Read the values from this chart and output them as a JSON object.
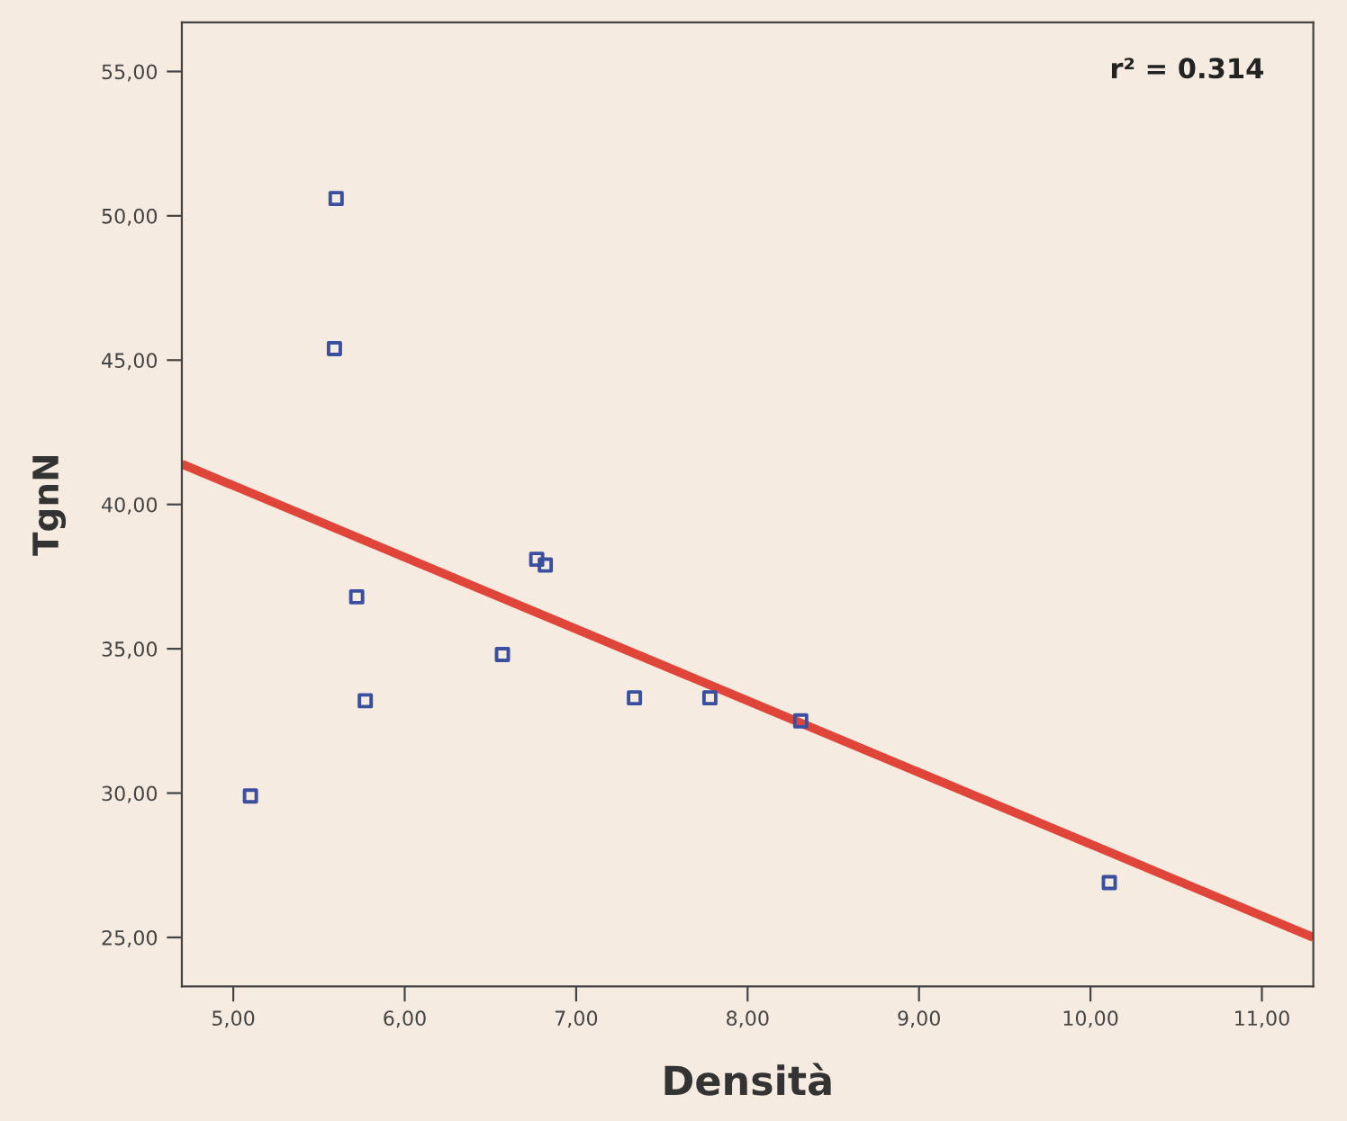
{
  "chart_data": {
    "type": "scatter",
    "xlabel": "Densità",
    "ylabel": "TgnN",
    "annotations": [
      "r² = 0.314"
    ],
    "xlim": [
      4.7,
      11.3
    ],
    "ylim": [
      23.3,
      56.7
    ],
    "xticks": [
      {
        "value": 5,
        "label": "5,00"
      },
      {
        "value": 6,
        "label": "6,00"
      },
      {
        "value": 7,
        "label": "7,00"
      },
      {
        "value": 8,
        "label": "8,00"
      },
      {
        "value": 9,
        "label": "9,00"
      },
      {
        "value": 10,
        "label": "10,00"
      },
      {
        "value": 11,
        "label": "11,00"
      }
    ],
    "yticks": [
      {
        "value": 25,
        "label": "25,00"
      },
      {
        "value": 30,
        "label": "30,00"
      },
      {
        "value": 35,
        "label": "35,00"
      },
      {
        "value": 40,
        "label": "40,00"
      },
      {
        "value": 45,
        "label": "45,00"
      },
      {
        "value": 50,
        "label": "50,00"
      },
      {
        "value": 55,
        "label": "55,00"
      }
    ],
    "grid": false,
    "series": [
      {
        "marker": "square",
        "color": "#3a4fa0",
        "x": [
          5.6,
          5.59,
          5.72,
          5.77,
          5.1,
          6.57,
          6.77,
          6.82,
          7.34,
          7.78,
          8.31,
          10.11
        ],
        "values": [
          50.6,
          45.4,
          36.8,
          33.2,
          29.9,
          34.8,
          38.1,
          37.9,
          33.3,
          33.3,
          32.5,
          26.9
        ]
      },
      {
        "type": "line",
        "marker": "none",
        "color": "#e0453a",
        "x": [
          4.7,
          11.3
        ],
        "values": [
          41.4,
          25.0
        ]
      }
    ]
  }
}
